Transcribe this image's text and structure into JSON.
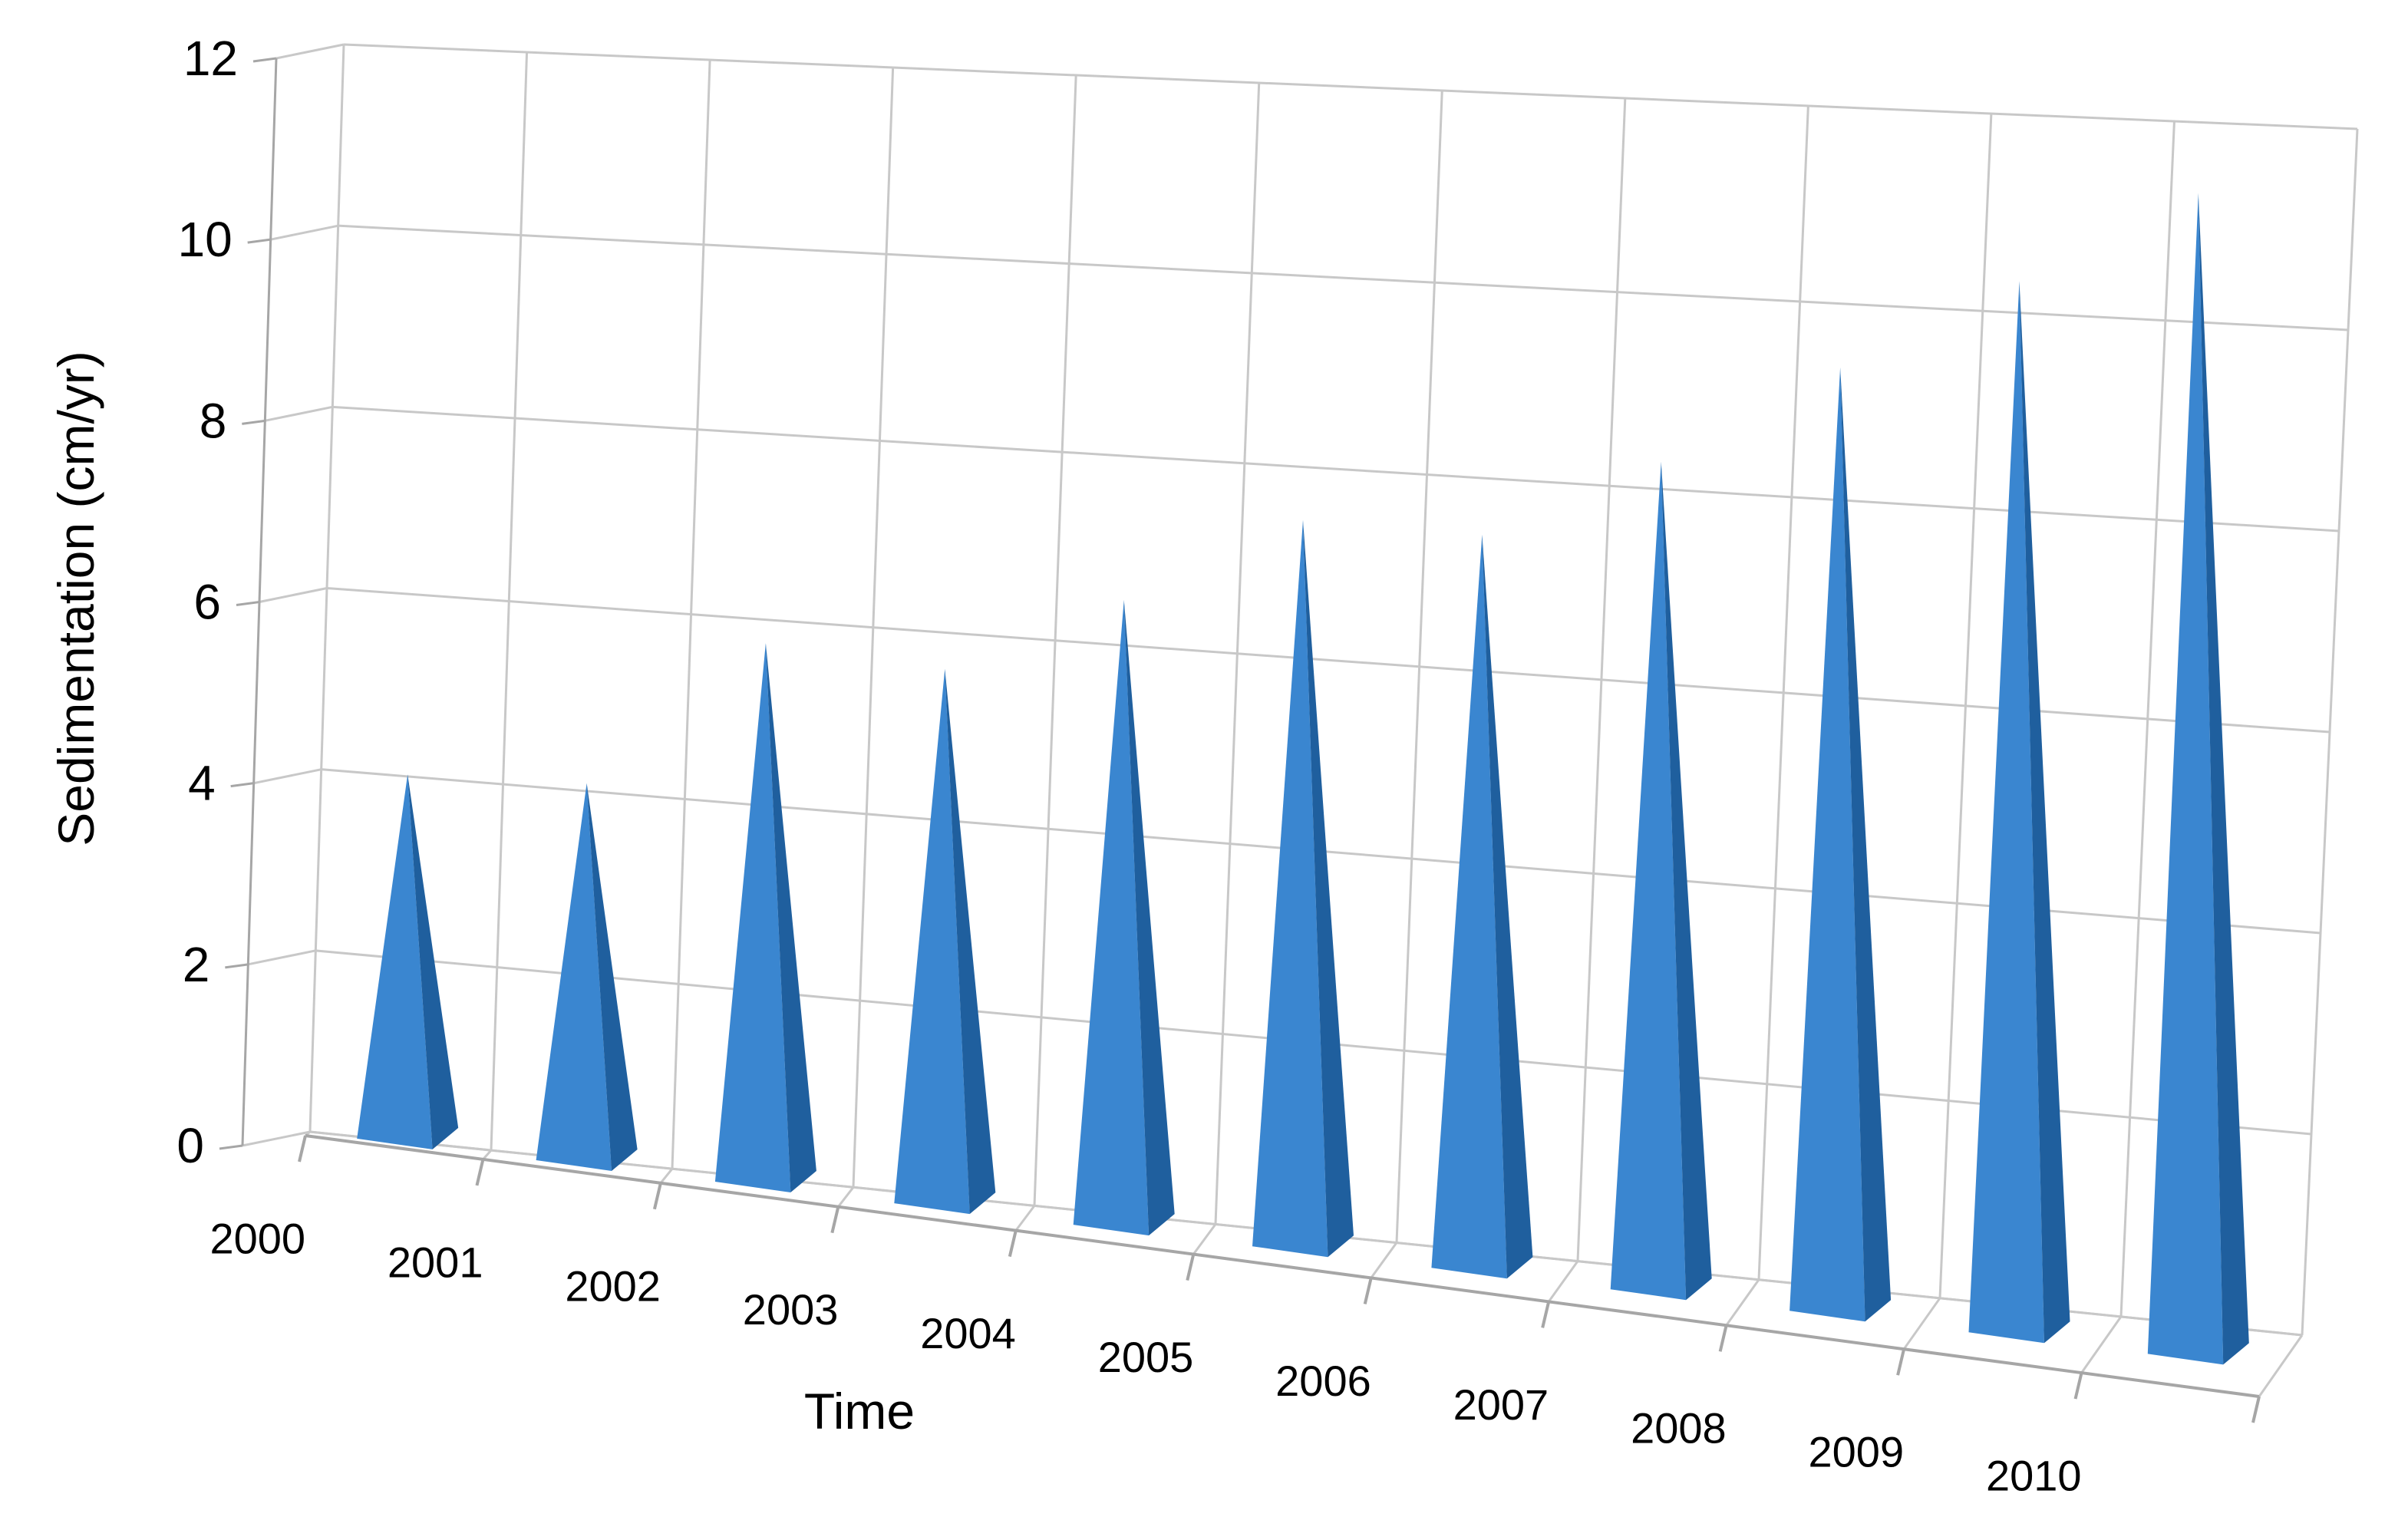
{
  "chart_data": {
    "type": "bar",
    "bar_shape": "pyramid",
    "perspective": "3d",
    "categories": [
      "2000",
      "2001",
      "2002",
      "2003",
      "2004",
      "2005",
      "2006",
      "2007",
      "2008",
      "2009",
      "2010"
    ],
    "values": [
      4.0,
      4.1,
      5.8,
      5.7,
      6.6,
      7.6,
      7.6,
      8.5,
      9.6,
      10.6,
      11.6
    ],
    "xlabel": "Time",
    "ylabel": "Sedimentation (cm/yr)",
    "ylim": [
      0,
      12
    ],
    "yticks": [
      "0",
      "2",
      "4",
      "6",
      "8",
      "10",
      "12"
    ],
    "grid": true,
    "legend": "none",
    "colors": {
      "bar_front": "#3a86d0",
      "bar_side": "#1f5f9e",
      "bar_side_dark": "#174a7c",
      "grid": "#c8c8c8",
      "axis": "#a6a6a6",
      "text": "#000000"
    }
  }
}
